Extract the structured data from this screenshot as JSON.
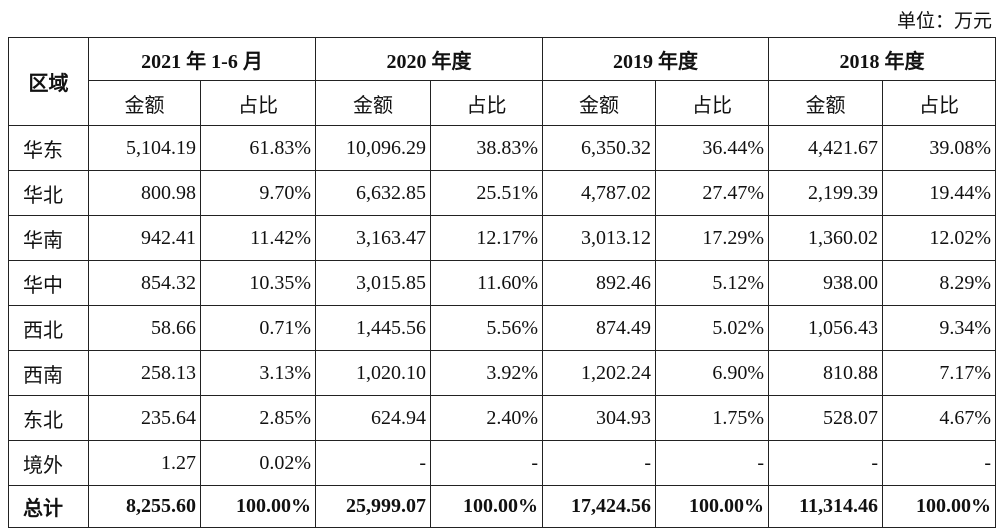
{
  "unit": "单位：万元",
  "header": {
    "region": "区域",
    "periods": [
      "2021 年 1-6 月",
      "2020 年度",
      "2019 年度",
      "2018 年度"
    ],
    "sub_columns": [
      "金额",
      "占比",
      "金额",
      "占比",
      "金额",
      "占比",
      "金额",
      "占比"
    ]
  },
  "table": {
    "rows": [
      [
        "华东",
        "5,104.19",
        "61.83%",
        "10,096.29",
        "38.83%",
        "6,350.32",
        "36.44%",
        "4,421.67",
        "39.08%"
      ],
      [
        "华北",
        "800.98",
        "9.70%",
        "6,632.85",
        "25.51%",
        "4,787.02",
        "27.47%",
        "2,199.39",
        "19.44%"
      ],
      [
        "华南",
        "942.41",
        "11.42%",
        "3,163.47",
        "12.17%",
        "3,013.12",
        "17.29%",
        "1,360.02",
        "12.02%"
      ],
      [
        "华中",
        "854.32",
        "10.35%",
        "3,015.85",
        "11.60%",
        "892.46",
        "5.12%",
        "938.00",
        "8.29%"
      ],
      [
        "西北",
        "58.66",
        "0.71%",
        "1,445.56",
        "5.56%",
        "874.49",
        "5.02%",
        "1,056.43",
        "9.34%"
      ],
      [
        "西南",
        "258.13",
        "3.13%",
        "1,020.10",
        "3.92%",
        "1,202.24",
        "6.90%",
        "810.88",
        "7.17%"
      ],
      [
        "东北",
        "235.64",
        "2.85%",
        "624.94",
        "2.40%",
        "304.93",
        "1.75%",
        "528.07",
        "4.67%"
      ],
      [
        "境外",
        "1.27",
        "0.02%",
        "-",
        "-",
        "-",
        "-",
        "-",
        "-"
      ],
      [
        "总计",
        "8,255.60",
        "100.00%",
        "25,999.07",
        "100.00%",
        "17,424.56",
        "100.00%",
        "11,314.46",
        "100.00%"
      ]
    ]
  }
}
